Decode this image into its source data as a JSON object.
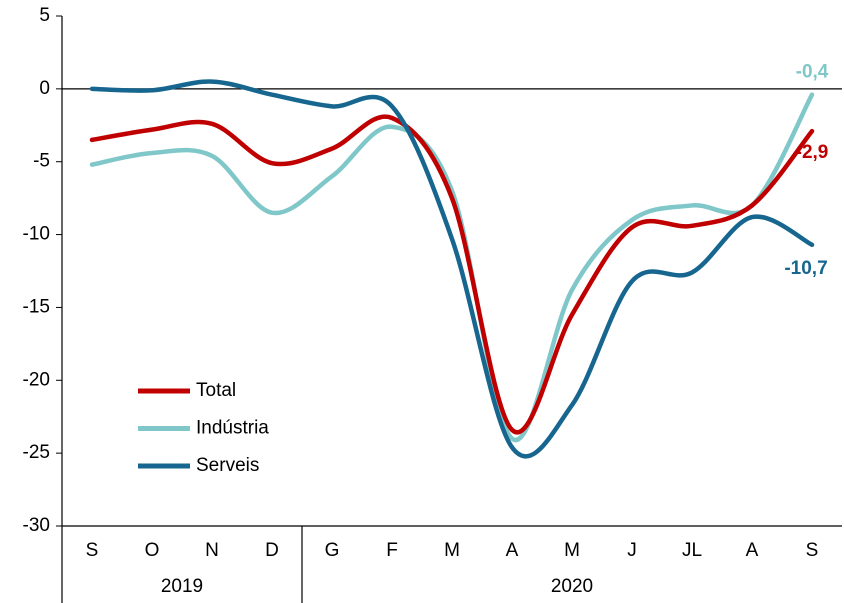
{
  "chart_data": {
    "type": "line",
    "categories": [
      "S",
      "O",
      "N",
      "D",
      "G",
      "F",
      "M",
      "A",
      "M",
      "J",
      "JL",
      "A",
      "S"
    ],
    "groups": [
      "2019",
      "2020"
    ],
    "series": [
      {
        "name": "Total",
        "color": "#c00000",
        "values": [
          -3.5,
          -2.8,
          -2.4,
          -5.1,
          -4.1,
          -2.0,
          -7.5,
          -23.4,
          -15.5,
          -9.5,
          -9.4,
          -8.0,
          -2.9
        ],
        "value_labels": [
          null,
          null,
          null,
          null,
          null,
          null,
          null,
          null,
          null,
          null,
          null,
          null,
          "-2,9"
        ]
      },
      {
        "name": "Indústria",
        "color": "#7fc7c9",
        "values": [
          -5.2,
          -4.4,
          -4.6,
          -8.5,
          -6.0,
          -2.6,
          -7.0,
          -24.0,
          -13.8,
          -9.0,
          -8.0,
          -8.0,
          -0.4
        ],
        "value_labels": [
          null,
          null,
          null,
          null,
          null,
          null,
          null,
          null,
          null,
          null,
          null,
          null,
          "-0,4"
        ]
      },
      {
        "name": "Serveis",
        "color": "#17668f",
        "values": [
          0,
          -0.1,
          0.5,
          -0.4,
          -1.2,
          -1.2,
          -10.3,
          -24.6,
          -21.7,
          -13.2,
          -12.6,
          -8.8,
          -10.7
        ],
        "value_labels": [
          null,
          null,
          null,
          null,
          null,
          null,
          null,
          null,
          null,
          null,
          null,
          null,
          "-10,7"
        ]
      }
    ],
    "ylim": [
      -30,
      5
    ],
    "yticks": [
      -30,
      -25,
      -20,
      -15,
      -10,
      -5,
      0,
      5
    ],
    "legend": "lower left"
  }
}
